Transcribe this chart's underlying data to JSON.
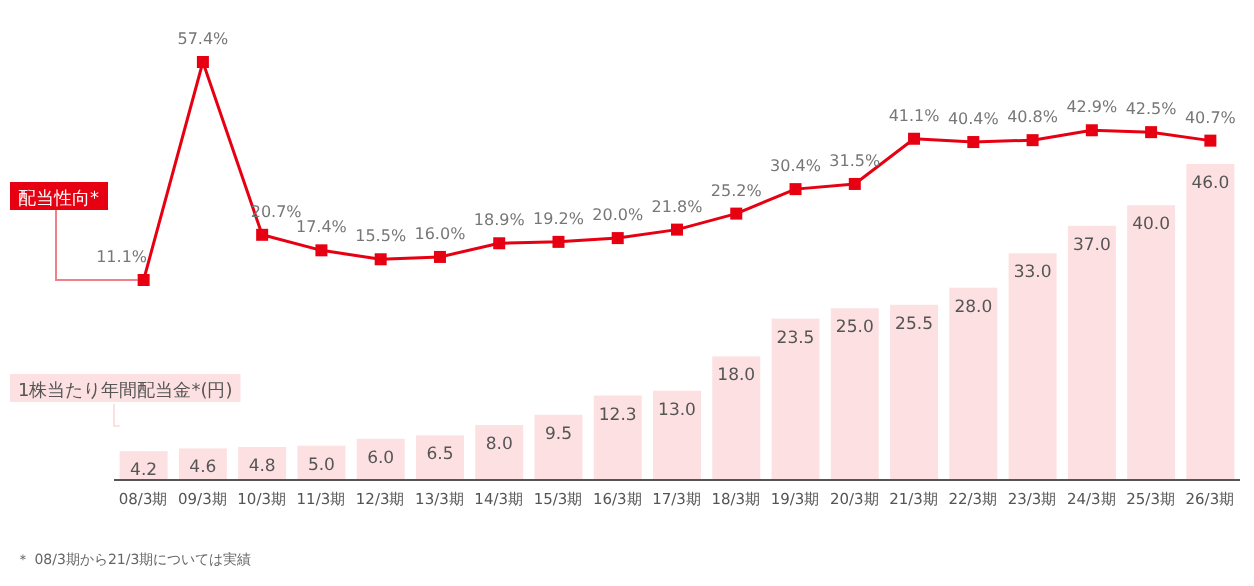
{
  "chart_data": {
    "type": "bar",
    "categories": [
      "08/3期",
      "09/3期",
      "10/3期",
      "11/3期",
      "12/3期",
      "13/3期",
      "14/3期",
      "15/3期",
      "16/3期",
      "17/3期",
      "18/3期",
      "19/3期",
      "20/3期",
      "21/3期",
      "22/3期",
      "23/3期",
      "24/3期",
      "25/3期",
      "26/3期"
    ],
    "series": [
      {
        "name": "1株当たり年間配当金*(円)",
        "color": "#fde1e2",
        "values": [
          4.2,
          4.6,
          4.8,
          5.0,
          6.0,
          6.5,
          8.0,
          9.5,
          12.3,
          13.0,
          18.0,
          23.5,
          25.0,
          25.5,
          28.0,
          33.0,
          37.0,
          40.0,
          46.0
        ],
        "value_labels": [
          "4.2",
          "4.6",
          "4.8",
          "5.0",
          "6.0",
          "6.5",
          "8.0",
          "9.5",
          "12.3",
          "13.0",
          "18.0",
          "23.5",
          "25.0",
          "25.5",
          "28.0",
          "33.0",
          "37.0",
          "40.0",
          "46.0"
        ]
      },
      {
        "name": "配当性向*",
        "type": "line",
        "axis": "y2",
        "color": "#e60012",
        "values": [
          11.1,
          57.4,
          20.7,
          17.4,
          15.5,
          16.0,
          18.9,
          19.2,
          20.0,
          21.8,
          25.2,
          30.4,
          31.5,
          41.1,
          40.4,
          40.8,
          42.9,
          42.5,
          40.7
        ],
        "value_labels": [
          "11.1%",
          "57.4%",
          "20.7%",
          "17.4%",
          "15.5%",
          "16.0%",
          "18.9%",
          "19.2%",
          "20.0%",
          "21.8%",
          "25.2%",
          "30.4%",
          "31.5%",
          "41.1%",
          "40.4%",
          "40.8%",
          "42.9%",
          "42.5%",
          "40.7%"
        ]
      }
    ],
    "marker": "square",
    "tick_labels": "x",
    "annotations": [
      "＊ 08/3期から21/3期については実績"
    ]
  }
}
